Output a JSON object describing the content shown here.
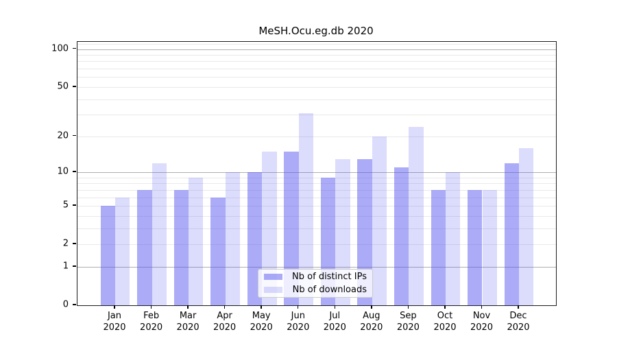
{
  "chart_data": {
    "type": "bar",
    "title": "MeSH.Ocu.eg.db 2020",
    "categories": [
      "Jan",
      "Feb",
      "Mar",
      "Apr",
      "May",
      "Jun",
      "Jul",
      "Aug",
      "Sep",
      "Oct",
      "Nov",
      "Dec"
    ],
    "category_year": "2020",
    "series": [
      {
        "name": "Nb of distinct IPs",
        "key": "distinct-ips",
        "color": "rgba(80,80,240,0.48)",
        "values": [
          5,
          7,
          7,
          6,
          10,
          15,
          9,
          13,
          11,
          7,
          7,
          12
        ]
      },
      {
        "name": "Nb of downloads",
        "key": "downloads",
        "color": "rgba(80,80,240,0.20)",
        "values": [
          6,
          12,
          9,
          10,
          15,
          31,
          13,
          20,
          24,
          10,
          7,
          16
        ]
      }
    ],
    "yscale": "log1p",
    "ylim": [
      0,
      114
    ],
    "yticks": [
      100,
      50,
      20,
      10,
      5,
      2,
      1,
      0
    ],
    "grid": {
      "major": [
        1,
        10,
        100
      ],
      "minor": [
        2,
        3,
        4,
        5,
        6,
        7,
        8,
        9,
        20,
        30,
        40,
        50,
        60,
        70,
        80,
        90,
        110
      ]
    },
    "legend_position": "lower center"
  }
}
